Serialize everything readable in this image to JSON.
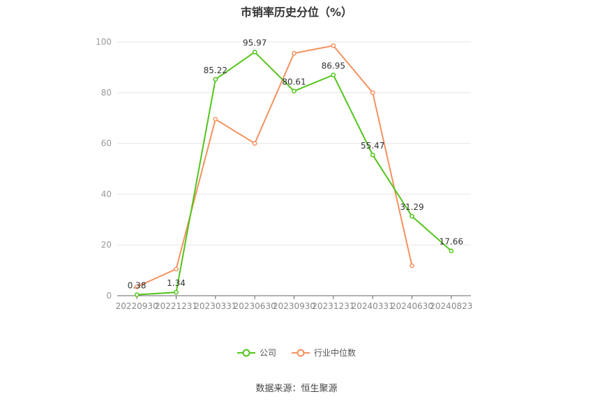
{
  "chart_data": {
    "type": "line",
    "title": "市销率历史分位（%）",
    "categories": [
      "20220930",
      "20221231",
      "20230331",
      "20230630",
      "20230930",
      "20231231",
      "20240331",
      "20240630",
      "20240823"
    ],
    "ylim": [
      0,
      100
    ],
    "yticks": [
      0,
      20,
      40,
      60,
      80,
      100
    ],
    "grid": true,
    "legend_position": "bottom",
    "series": [
      {
        "name": "公司",
        "color": "#52c41a",
        "values": [
          0.38,
          1.34,
          85.22,
          95.97,
          80.61,
          86.95,
          55.47,
          31.29,
          17.66
        ],
        "labels": [
          "0.38",
          "1.34",
          "85.22",
          "95.97",
          "80.61",
          "86.95",
          "55.47",
          "31.29",
          "17.66"
        ]
      },
      {
        "name": "行业中位数",
        "color": "#f4915e",
        "values": [
          3.5,
          10.5,
          69.5,
          60.0,
          95.5,
          98.5,
          80.0,
          11.8,
          null
        ]
      }
    ]
  },
  "source": "数据来源：恒生聚源"
}
